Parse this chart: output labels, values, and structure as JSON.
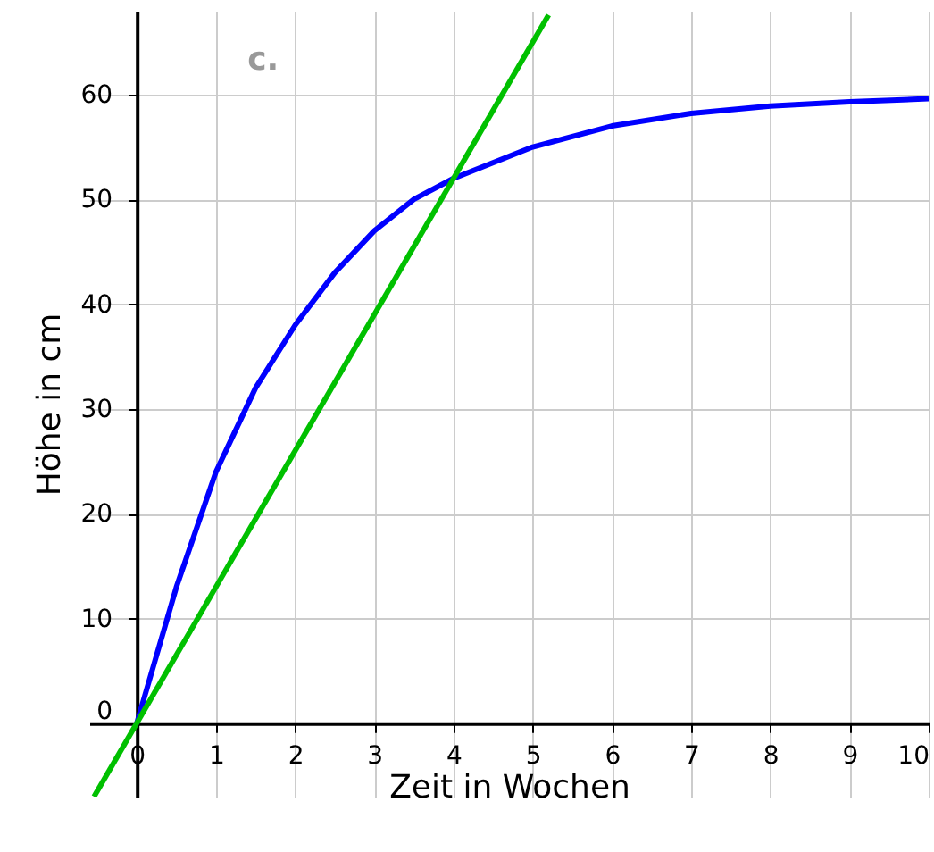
{
  "chart_data": {
    "type": "line",
    "xlabel": "Zeit in Wochen",
    "ylabel": "Höhe in cm",
    "annotations": [
      "c."
    ],
    "xlim": [
      -0.6,
      10
    ],
    "ylim": [
      -7,
      68
    ],
    "xticks": [
      0,
      1,
      2,
      3,
      4,
      5,
      6,
      7,
      8,
      9,
      10
    ],
    "yticks": [
      0,
      10,
      20,
      30,
      40,
      50,
      60
    ],
    "grid": true,
    "marker": "none",
    "line_style": "solid",
    "series": [
      {
        "color": "#0000ff",
        "x": [
          0,
          0.5,
          1,
          1.5,
          2,
          2.5,
          3,
          3.5,
          4,
          5,
          6,
          7,
          8,
          9,
          10
        ],
        "values": [
          0,
          13,
          24,
          32,
          38,
          43,
          47,
          50,
          52,
          55,
          57,
          58.2,
          58.9,
          59.3,
          59.6
        ]
      },
      {
        "color": "#00c000",
        "x": [
          -0.54,
          5.2
        ],
        "values": [
          -7,
          67.6
        ]
      }
    ]
  }
}
